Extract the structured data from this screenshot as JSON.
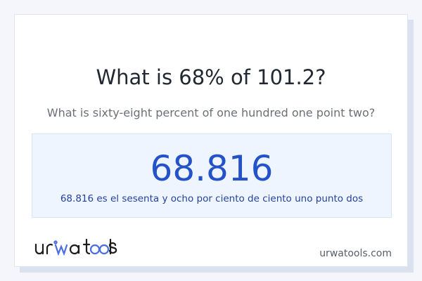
{
  "question": {
    "title": "What is 68% of 101.2?",
    "subtitle": "What is sixty-eight percent of one hundred one point two?"
  },
  "result": {
    "value": "68.816",
    "description": "68.816 es el sesenta y ocho por ciento de ciento uno punto dos"
  },
  "footer": {
    "logo_text": "urwatools",
    "site": "urwatools.com"
  },
  "colors": {
    "accent": "#2453c9",
    "result_bg": "#eef5ff",
    "logo_accent": "#4a6ee0"
  }
}
